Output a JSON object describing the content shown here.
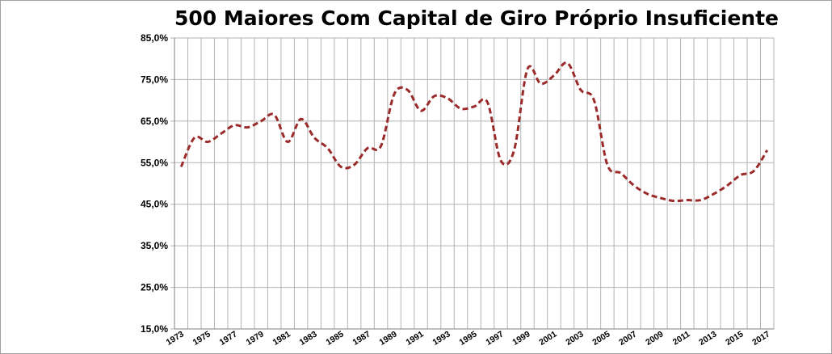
{
  "chart_data": {
    "type": "line",
    "title": "500 Maiores Com Capital de Giro Próprio Insuficiente",
    "xlabel": "",
    "ylabel": "",
    "ylim": [
      15,
      85
    ],
    "y_ticks": [
      "15,0%",
      "25,0%",
      "35,0%",
      "45,0%",
      "55,0%",
      "65,0%",
      "75,0%",
      "85,0%"
    ],
    "x_ticks": [
      "1973",
      "1975",
      "1977",
      "1979",
      "1981",
      "1983",
      "1985",
      "1987",
      "1989",
      "1991",
      "1993",
      "1995",
      "1997",
      "1999",
      "2001",
      "2003",
      "2005",
      "2007",
      "2009",
      "2011",
      "2013",
      "2015",
      "2017"
    ],
    "grid": "vertical and horizontal",
    "line_color": "#9b2b2b",
    "line_style": "dashed",
    "series": [
      {
        "x": [
          1973,
          1974,
          1975,
          1976,
          1977,
          1978,
          1979,
          1980,
          1981,
          1982,
          1983,
          1984,
          1985,
          1986,
          1987,
          1988,
          1989,
          1990,
          1991,
          1992,
          1993,
          1994,
          1995,
          1996,
          1997,
          1998,
          1999,
          2000,
          2001,
          2002,
          2003,
          2004,
          2005,
          2006,
          2007,
          2008,
          2009,
          2010,
          2011,
          2012,
          2013,
          2014,
          2015,
          2016,
          2017
        ],
        "values": [
          54.0,
          61.0,
          60.0,
          62.0,
          64.0,
          63.5,
          65.0,
          66.5,
          60.0,
          65.5,
          61.0,
          58.5,
          54.0,
          54.5,
          58.5,
          59.0,
          71.5,
          72.5,
          67.5,
          71.0,
          70.5,
          68.0,
          68.5,
          69.5,
          55.5,
          58.0,
          77.5,
          74.0,
          76.0,
          79.0,
          72.5,
          70.0,
          54.5,
          52.5,
          49.5,
          47.5,
          46.5,
          45.8,
          46.0,
          46.0,
          47.5,
          49.5,
          52.0,
          53.0,
          58.0
        ]
      }
    ]
  }
}
